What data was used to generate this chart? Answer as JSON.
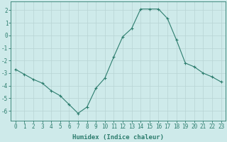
{
  "x": [
    0,
    1,
    2,
    3,
    4,
    5,
    6,
    7,
    8,
    9,
    10,
    11,
    12,
    13,
    14,
    15,
    16,
    17,
    18,
    19,
    20,
    21,
    22,
    23
  ],
  "y": [
    -2.7,
    -3.1,
    -3.5,
    -3.8,
    -4.4,
    -4.8,
    -5.5,
    -6.2,
    -5.7,
    -4.2,
    -3.4,
    -1.7,
    -0.1,
    0.55,
    2.1,
    2.1,
    2.1,
    1.35,
    -0.35,
    -2.2,
    -2.5,
    -3.0,
    -3.3,
    -3.7
  ],
  "line_color": "#2d7d6e",
  "marker": "+",
  "marker_size": 3,
  "bg_color": "#ceeaea",
  "grid_color": "#b8d4d4",
  "xlabel": "Humidex (Indice chaleur)",
  "xlim_min": -0.5,
  "xlim_max": 23.5,
  "ylim_min": -6.8,
  "ylim_max": 2.7,
  "yticks": [
    -6,
    -5,
    -4,
    -3,
    -2,
    -1,
    0,
    1,
    2
  ],
  "xtick_labels": [
    "0",
    "1",
    "2",
    "3",
    "4",
    "5",
    "6",
    "7",
    "8",
    "9",
    "10",
    "11",
    "12",
    "13",
    "14",
    "15",
    "16",
    "17",
    "18",
    "19",
    "20",
    "21",
    "22",
    "23"
  ],
  "axis_color": "#2d7d6e",
  "tick_color": "#2d7d6e",
  "label_color": "#2d7d6e",
  "tick_fontsize": 5.5,
  "xlabel_fontsize": 6.5
}
